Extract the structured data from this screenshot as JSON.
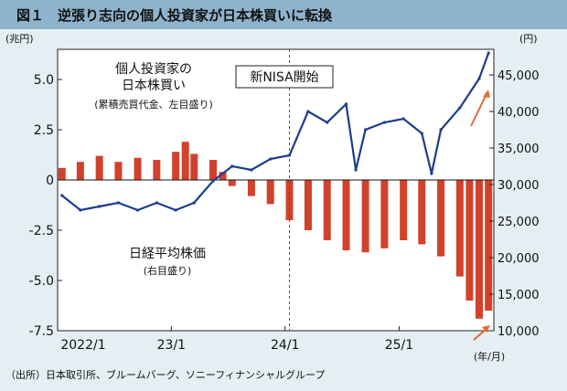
{
  "title": "図１　逆張り志向の個人投資家が日本株買いに転換",
  "source": "（出所）日本取引所、ブルームバーグ、ソニーフィナンシャルグループ",
  "chart_data": {
    "type": "bar+line",
    "left_axis": {
      "unit_label": "(兆円)",
      "range": [
        -7.5,
        6.5
      ],
      "ticks": [
        5.0,
        2.5,
        0,
        -2.5,
        -5.0,
        -7.5
      ],
      "tick_labels": [
        "5.0",
        "2.5",
        "0",
        "-2.5",
        "-5.0",
        "-7.5"
      ]
    },
    "right_axis": {
      "unit_label": "(円)",
      "range": [
        10000,
        48500
      ],
      "ticks": [
        45000,
        40000,
        35000,
        30000,
        25000,
        20000,
        15000,
        10000
      ],
      "tick_labels": [
        "45,000",
        "40,000",
        "35,000",
        "30,000",
        "25,000",
        "20,000",
        "15,000",
        "10,000"
      ]
    },
    "x_axis": {
      "tick_labels": [
        "2022/1",
        "23/1",
        "24/1",
        "25/1"
      ],
      "range_label": "(年/月)"
    },
    "vertical_marker": {
      "label": "新NISA開始",
      "at": "2024-01"
    },
    "bar_series": {
      "name": "個人投資家の日本株買い",
      "note": "(累積売買代金、左目盛り)",
      "color": "#d2412b",
      "points": [
        [
          "2022-01",
          0.6
        ],
        [
          "2022-03",
          0.9
        ],
        [
          "2022-05",
          1.2
        ],
        [
          "2022-07",
          0.9
        ],
        [
          "2022-09",
          1.1
        ],
        [
          "2022-11",
          1.0
        ],
        [
          "2023-01",
          1.4
        ],
        [
          "2023-02",
          1.9
        ],
        [
          "2023-03",
          1.3
        ],
        [
          "2023-05",
          1.0
        ],
        [
          "2023-06",
          0.4
        ],
        [
          "2023-07",
          -0.3
        ],
        [
          "2023-09",
          -0.8
        ],
        [
          "2023-11",
          -1.2
        ],
        [
          "2024-01",
          -2.0
        ],
        [
          "2024-03",
          -2.5
        ],
        [
          "2024-05",
          -3.0
        ],
        [
          "2024-07",
          -3.5
        ],
        [
          "2024-09",
          -3.6
        ],
        [
          "2024-11",
          -3.4
        ],
        [
          "2025-01",
          -3.0
        ],
        [
          "2025-03",
          -3.2
        ],
        [
          "2025-05",
          -3.8
        ],
        [
          "2025-07",
          -4.8
        ],
        [
          "2025-08",
          -6.0
        ],
        [
          "2025-09",
          -6.9
        ],
        [
          "2025-10",
          -6.5
        ]
      ]
    },
    "line_series": {
      "name": "日経平均株価",
      "note": "(右目盛り)",
      "color": "#1b3d8c",
      "points": [
        [
          "2022-01",
          28500
        ],
        [
          "2022-03",
          26500
        ],
        [
          "2022-05",
          27000
        ],
        [
          "2022-07",
          27500
        ],
        [
          "2022-09",
          26500
        ],
        [
          "2022-11",
          27500
        ],
        [
          "2023-01",
          26500
        ],
        [
          "2023-03",
          27500
        ],
        [
          "2023-05",
          30500
        ],
        [
          "2023-07",
          32500
        ],
        [
          "2023-09",
          32000
        ],
        [
          "2023-11",
          33500
        ],
        [
          "2024-01",
          34000
        ],
        [
          "2024-03",
          40000
        ],
        [
          "2024-05",
          38500
        ],
        [
          "2024-07",
          41000
        ],
        [
          "2024-08",
          32000
        ],
        [
          "2024-09",
          37500
        ],
        [
          "2024-11",
          38500
        ],
        [
          "2025-01",
          39000
        ],
        [
          "2025-03",
          37000
        ],
        [
          "2025-04",
          31500
        ],
        [
          "2025-05",
          37500
        ],
        [
          "2025-07",
          40500
        ],
        [
          "2025-09",
          44500
        ],
        [
          "2025-10",
          48000
        ]
      ]
    }
  }
}
